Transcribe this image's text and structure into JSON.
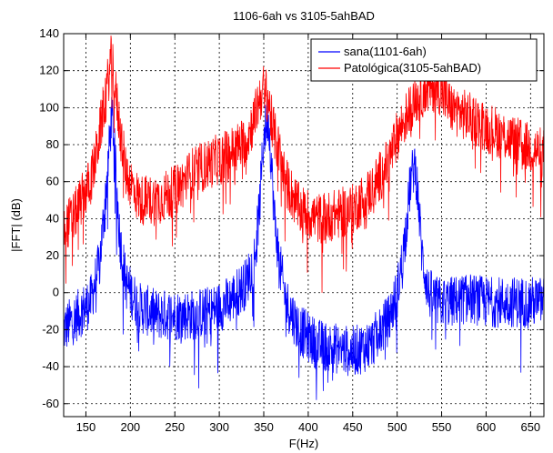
{
  "chart_data": {
    "type": "line",
    "title": "1106-6ah vs 3105-5ahBAD",
    "xlabel": "F(Hz)",
    "ylabel": "|FFT| (dB)",
    "xlim": [
      125,
      665
    ],
    "ylim": [
      -67,
      140
    ],
    "xticks": [
      150,
      200,
      250,
      300,
      350,
      400,
      450,
      500,
      550,
      600,
      650
    ],
    "yticks": [
      -60,
      -40,
      -20,
      0,
      20,
      40,
      60,
      80,
      100,
      120,
      140
    ],
    "grid": true,
    "grid_style": "dashed",
    "legend_position": "top-right",
    "series": [
      {
        "name": "sana(1101-6ah)",
        "color": "#0000ff",
        "x": [
          125,
          135,
          145,
          155,
          160,
          165,
          170,
          175,
          178,
          180,
          183,
          188,
          195,
          210,
          230,
          250,
          270,
          290,
          310,
          330,
          340,
          345,
          350,
          355,
          358,
          362,
          368,
          375,
          390,
          410,
          430,
          450,
          470,
          490,
          500,
          505,
          510,
          515,
          520,
          523,
          528,
          535,
          545,
          560,
          580,
          600,
          620,
          640,
          665
        ],
        "values": [
          -20,
          -15,
          -10,
          -5,
          5,
          15,
          40,
          70,
          90,
          95,
          70,
          30,
          5,
          -8,
          -12,
          -12,
          -12,
          -10,
          -5,
          5,
          20,
          45,
          85,
          95,
          75,
          40,
          15,
          -5,
          -20,
          -28,
          -30,
          -32,
          -28,
          -15,
          0,
          15,
          35,
          60,
          70,
          55,
          20,
          0,
          -5,
          -5,
          -3,
          -5,
          -5,
          -5,
          -5
        ]
      },
      {
        "name": "Patológica(3105-5ahBAD)",
        "color": "#ff0000",
        "x": [
          125,
          135,
          145,
          155,
          160,
          165,
          170,
          175,
          178,
          180,
          183,
          188,
          195,
          210,
          230,
          250,
          270,
          290,
          310,
          330,
          340,
          345,
          350,
          355,
          358,
          362,
          368,
          375,
          390,
          410,
          430,
          450,
          470,
          490,
          500,
          505,
          510,
          515,
          520,
          523,
          528,
          535,
          545,
          560,
          580,
          600,
          620,
          640,
          665
        ],
        "values": [
          35,
          40,
          50,
          60,
          70,
          85,
          100,
          115,
          125,
          125,
          110,
          90,
          65,
          50,
          50,
          55,
          65,
          70,
          75,
          82,
          95,
          105,
          110,
          105,
          95,
          85,
          75,
          60,
          45,
          40,
          42,
          45,
          55,
          70,
          85,
          90,
          95,
          100,
          105,
          105,
          108,
          110,
          112,
          100,
          95,
          90,
          85,
          80,
          75
        ]
      }
    ]
  }
}
